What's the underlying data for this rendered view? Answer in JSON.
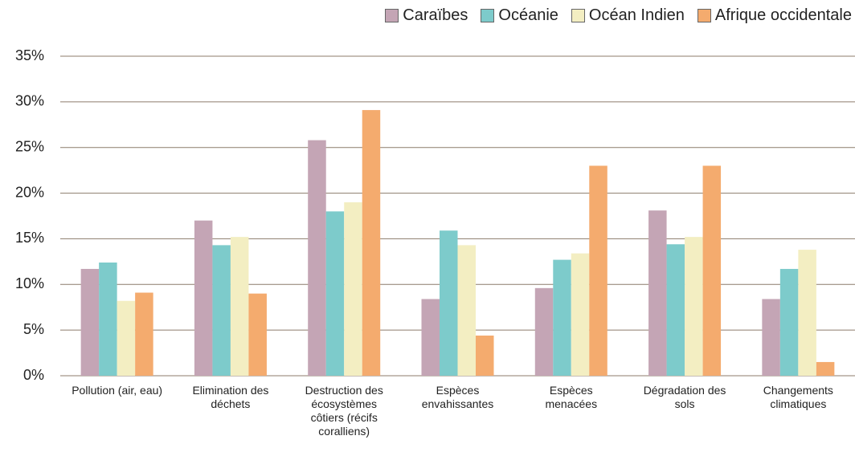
{
  "chart_data": {
    "type": "bar",
    "categories": [
      "Pollution (air, eau)",
      "Elimination des déchets",
      "Destruction des écosystèmes côtiers (récifs coralliens)",
      "Espèces envahissantes",
      "Espèces menacées",
      "Dégradation des sols",
      "Changements climatiques"
    ],
    "series": [
      {
        "name": "Caraïbes",
        "color": "#c4a5b5",
        "values": [
          11.7,
          17,
          25.8,
          8.4,
          9.6,
          18.1,
          8.4
        ]
      },
      {
        "name": "Océanie",
        "color": "#7dcbcb",
        "values": [
          12.4,
          14.3,
          18,
          15.9,
          12.7,
          14.4,
          11.7
        ]
      },
      {
        "name": "Océan Indien",
        "color": "#f3eec2",
        "values": [
          8.2,
          15.2,
          19,
          14.3,
          13.4,
          15.2,
          13.8
        ]
      },
      {
        "name": "Afrique occidentale",
        "color": "#f4ab6e",
        "values": [
          9.1,
          9.0,
          29.1,
          4.4,
          23,
          23,
          1.5
        ]
      }
    ],
    "ylim": [
      0,
      35
    ],
    "yticks": [
      {
        "value": 0,
        "label": "0%"
      },
      {
        "value": 5,
        "label": "5%"
      },
      {
        "value": 10,
        "label": "10%"
      },
      {
        "value": 15,
        "label": "15%"
      },
      {
        "value": 20,
        "label": "20%"
      },
      {
        "value": 25,
        "label": "25%"
      },
      {
        "value": 30,
        "label": "30%"
      },
      {
        "value": 35,
        "label": "35%"
      }
    ],
    "grid": true,
    "legend": "top-right"
  }
}
